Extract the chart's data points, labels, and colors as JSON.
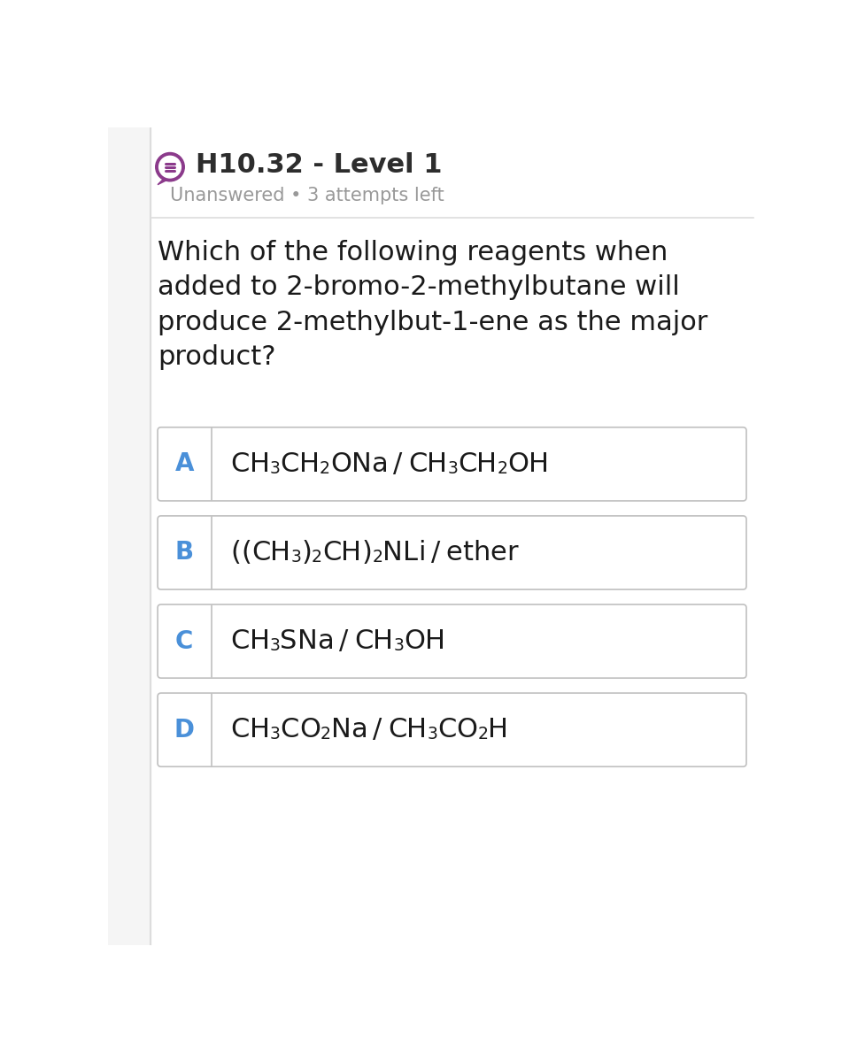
{
  "title": "H10.32 - Level 1",
  "subtitle": "Unanswered • 3 attempts left",
  "question": "Which of the following reagents when\nadded to 2-bromo-2-methylbutane will\nproduce 2-methylbut-1-ene as the major\nproduct?",
  "option_A": "CH3CH2ONa / CH3CH2OH",
  "option_B": "((CH3)2CH)2NLi / ether",
  "option_C": "CH3SNa / CH3OH",
  "option_D": "CH3CO2Na / CH3CO2H",
  "bg_color": "#ffffff",
  "title_color": "#2d2d2d",
  "subtitle_color": "#999999",
  "question_color": "#1a1a1a",
  "label_color": "#4a90d9",
  "formula_color": "#1a1a1a",
  "icon_color": "#8b3a8b",
  "divider_color": "#dddddd",
  "border_color": "#c0c0c0"
}
